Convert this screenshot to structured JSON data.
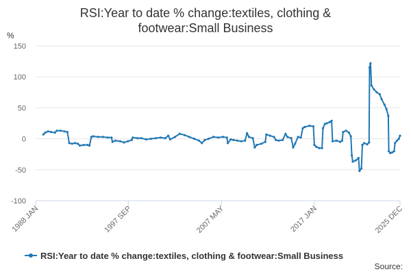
{
  "title_line1": "RSI:Year to date % change:textiles, clothing &",
  "title_line2": "footwear:Small Business",
  "y_unit": "%",
  "source_label": "Source:",
  "colors": {
    "series": "#1f77b4",
    "grid": "#e6e6e6",
    "axis": "#ccd6eb"
  },
  "chart_data": {
    "type": "line",
    "title": "RSI:Year to date % change:textiles, clothing & footwear:Small Business",
    "ylabel": "%",
    "ylim": [
      -100,
      150
    ],
    "xlim": [
      1988.0,
      2025.92
    ],
    "yticks": [
      150,
      100,
      50,
      0,
      -50,
      -100
    ],
    "xticks": [
      {
        "label": "1988 JAN",
        "x": 1988.0
      },
      {
        "label": "1997 SEP",
        "x": 1997.67
      },
      {
        "label": "2007 MAY",
        "x": 2007.33
      },
      {
        "label": "2017 JAN",
        "x": 2017.0
      },
      {
        "label": "2025 DEC",
        "x": 2025.92
      }
    ],
    "grid": true,
    "legend": "bottom",
    "series": [
      {
        "name": "RSI:Year to date % change:textiles, clothing & footwear:Small Business",
        "points": [
          [
            1988.8,
            7
          ],
          [
            1989.0,
            10
          ],
          [
            1989.3,
            12
          ],
          [
            1989.6,
            11
          ],
          [
            1990.0,
            10
          ],
          [
            1990.2,
            13
          ],
          [
            1990.6,
            13
          ],
          [
            1991.0,
            12
          ],
          [
            1991.3,
            11
          ],
          [
            1991.5,
            -7
          ],
          [
            1991.8,
            -8
          ],
          [
            1992.1,
            -7
          ],
          [
            1992.4,
            -8
          ],
          [
            1992.6,
            -11
          ],
          [
            1993.0,
            -10
          ],
          [
            1993.4,
            -10
          ],
          [
            1993.6,
            -11
          ],
          [
            1993.8,
            3
          ],
          [
            1994.0,
            4
          ],
          [
            1994.5,
            3
          ],
          [
            1995.0,
            3
          ],
          [
            1995.5,
            2
          ],
          [
            1995.9,
            2
          ],
          [
            1996.0,
            -5
          ],
          [
            1996.3,
            -3
          ],
          [
            1996.8,
            -4
          ],
          [
            1997.2,
            -6
          ],
          [
            1997.6,
            -4
          ],
          [
            1998.0,
            -2
          ],
          [
            1998.1,
            2
          ],
          [
            1998.6,
            1
          ],
          [
            1999.0,
            1
          ],
          [
            1999.5,
            -1
          ],
          [
            2000.0,
            0
          ],
          [
            2000.5,
            1
          ],
          [
            2001.0,
            2
          ],
          [
            2001.5,
            1
          ],
          [
            2001.8,
            5
          ],
          [
            2002.0,
            -1
          ],
          [
            2002.5,
            3
          ],
          [
            2003.0,
            8
          ],
          [
            2003.5,
            6
          ],
          [
            2004.0,
            3
          ],
          [
            2004.5,
            0
          ],
          [
            2005.0,
            -3
          ],
          [
            2005.3,
            -7
          ],
          [
            2005.6,
            -2
          ],
          [
            2006.0,
            0
          ],
          [
            2006.5,
            3
          ],
          [
            2007.0,
            2
          ],
          [
            2007.5,
            3
          ],
          [
            2007.9,
            2
          ],
          [
            2008.0,
            -7
          ],
          [
            2008.3,
            -1
          ],
          [
            2008.6,
            -2
          ],
          [
            2009.0,
            -3
          ],
          [
            2009.4,
            -4
          ],
          [
            2009.8,
            -3
          ],
          [
            2010.0,
            9
          ],
          [
            2010.2,
            3
          ],
          [
            2010.6,
            1
          ],
          [
            2010.8,
            -14
          ],
          [
            2011.0,
            -10
          ],
          [
            2011.5,
            -8
          ],
          [
            2011.9,
            -5
          ],
          [
            2012.0,
            7
          ],
          [
            2012.4,
            5
          ],
          [
            2012.8,
            3
          ],
          [
            2013.0,
            -2
          ],
          [
            2013.3,
            -3
          ],
          [
            2013.7,
            -2
          ],
          [
            2014.0,
            8
          ],
          [
            2014.2,
            3
          ],
          [
            2014.6,
            1
          ],
          [
            2014.8,
            -14
          ],
          [
            2015.0,
            -8
          ],
          [
            2015.3,
            3
          ],
          [
            2015.6,
            2
          ],
          [
            2015.8,
            17
          ],
          [
            2016.0,
            19
          ],
          [
            2016.5,
            21
          ],
          [
            2016.9,
            20
          ],
          [
            2017.0,
            -10
          ],
          [
            2017.2,
            -13
          ],
          [
            2017.5,
            -15
          ],
          [
            2017.8,
            -15
          ],
          [
            2017.9,
            17
          ],
          [
            2018.1,
            24
          ],
          [
            2018.3,
            25
          ],
          [
            2018.6,
            27
          ],
          [
            2018.8,
            29
          ],
          [
            2018.9,
            -4
          ],
          [
            2019.3,
            -3
          ],
          [
            2019.7,
            -5
          ],
          [
            2019.9,
            -3
          ],
          [
            2020.0,
            11
          ],
          [
            2020.3,
            13
          ],
          [
            2020.6,
            10
          ],
          [
            2020.8,
            4
          ],
          [
            2020.9,
            -27
          ],
          [
            2021.0,
            -37
          ],
          [
            2021.3,
            -35
          ],
          [
            2021.6,
            -31
          ],
          [
            2021.7,
            -52
          ],
          [
            2021.9,
            -48
          ],
          [
            2022.0,
            -10
          ],
          [
            2022.2,
            -7
          ],
          [
            2022.5,
            -9
          ],
          [
            2022.7,
            -6
          ],
          [
            2022.75,
            115
          ],
          [
            2022.85,
            122
          ],
          [
            2022.95,
            86
          ],
          [
            2023.2,
            80
          ],
          [
            2023.5,
            75
          ],
          [
            2023.8,
            72
          ],
          [
            2024.0,
            64
          ],
          [
            2024.3,
            55
          ],
          [
            2024.5,
            48
          ],
          [
            2024.7,
            37
          ],
          [
            2024.75,
            -20
          ],
          [
            2024.9,
            -23
          ],
          [
            2025.1,
            -22
          ],
          [
            2025.3,
            -20
          ],
          [
            2025.4,
            -7
          ],
          [
            2025.6,
            -3
          ],
          [
            2025.8,
            0
          ],
          [
            2025.92,
            5
          ]
        ]
      }
    ]
  }
}
